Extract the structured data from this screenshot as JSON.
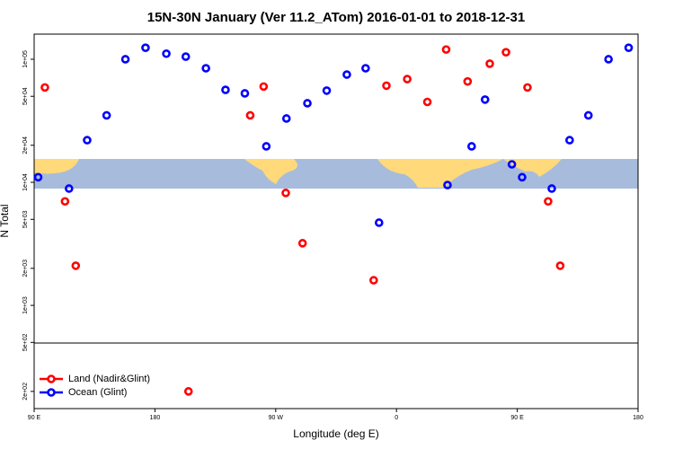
{
  "chart_data": {
    "type": "scatter",
    "title": "15N-30N January (Ver 11.2_ATom)   2016-01-01 to 2018-12-31",
    "x_label": "Longitude (deg E)",
    "y_label": "N Total",
    "xlim": [
      90,
      540
    ],
    "xticks": [
      {
        "value": 90,
        "label": "90 E"
      },
      180,
      {
        "value": 270,
        "label": "90 W"
      },
      {
        "value": 360,
        "label": "0"
      },
      {
        "value": 450,
        "label": "90 E"
      },
      {
        "value": 540,
        "label": "180"
      }
    ],
    "ylim": [
      145,
      160000
    ],
    "log_y": true,
    "yticks": [
      {
        "value": 100000,
        "label": "1e+05"
      },
      {
        "value": 50000,
        "label": "5e+04"
      },
      {
        "value": 20000,
        "label": "2e+04"
      },
      {
        "value": 10000,
        "label": "1e+04"
      },
      {
        "value": 5000,
        "label": "5e+03"
      },
      {
        "value": 2000,
        "label": "2e+03"
      },
      {
        "value": 1000,
        "label": "1e+03"
      },
      {
        "value": 500,
        "label": "5e+02"
      },
      {
        "value": 200,
        "label": "2e+02"
      }
    ],
    "legend": "bottom-left",
    "series": [
      {
        "name": "Land (Nadir&Glint)",
        "color": "#ff0000",
        "x": [
          98,
          113,
          121,
          205,
          251,
          261,
          277.5,
          290,
          343,
          352.5,
          368,
          383,
          397,
          413,
          429.5,
          441.6,
          457.6,
          473,
          482
        ],
        "values": [
          59000,
          7000,
          2100,
          200,
          35000,
          60000,
          8200,
          3200,
          1600,
          61000,
          69000,
          45000,
          120000,
          66000,
          92000,
          114000,
          59000,
          7000,
          2100
        ]
      },
      {
        "name": "Ocean (Glint)",
        "color": "#0000ff",
        "x": [
          93,
          116,
          129.5,
          144,
          158,
          173,
          188.5,
          203,
          218,
          232.6,
          247,
          263,
          278,
          293.6,
          308,
          323,
          337,
          347,
          398,
          416,
          426,
          446,
          453.6,
          475.7,
          489,
          503,
          518,
          533
        ],
        "values": [
          11000,
          8900,
          22000,
          35000,
          100000,
          124000,
          111000,
          105000,
          84500,
          56400,
          52800,
          19600,
          33000,
          43900,
          55600,
          75100,
          84500,
          4700,
          9500,
          19600,
          47000,
          14000,
          11000,
          8900,
          22000,
          35000,
          100000,
          124000
        ]
      }
    ]
  }
}
